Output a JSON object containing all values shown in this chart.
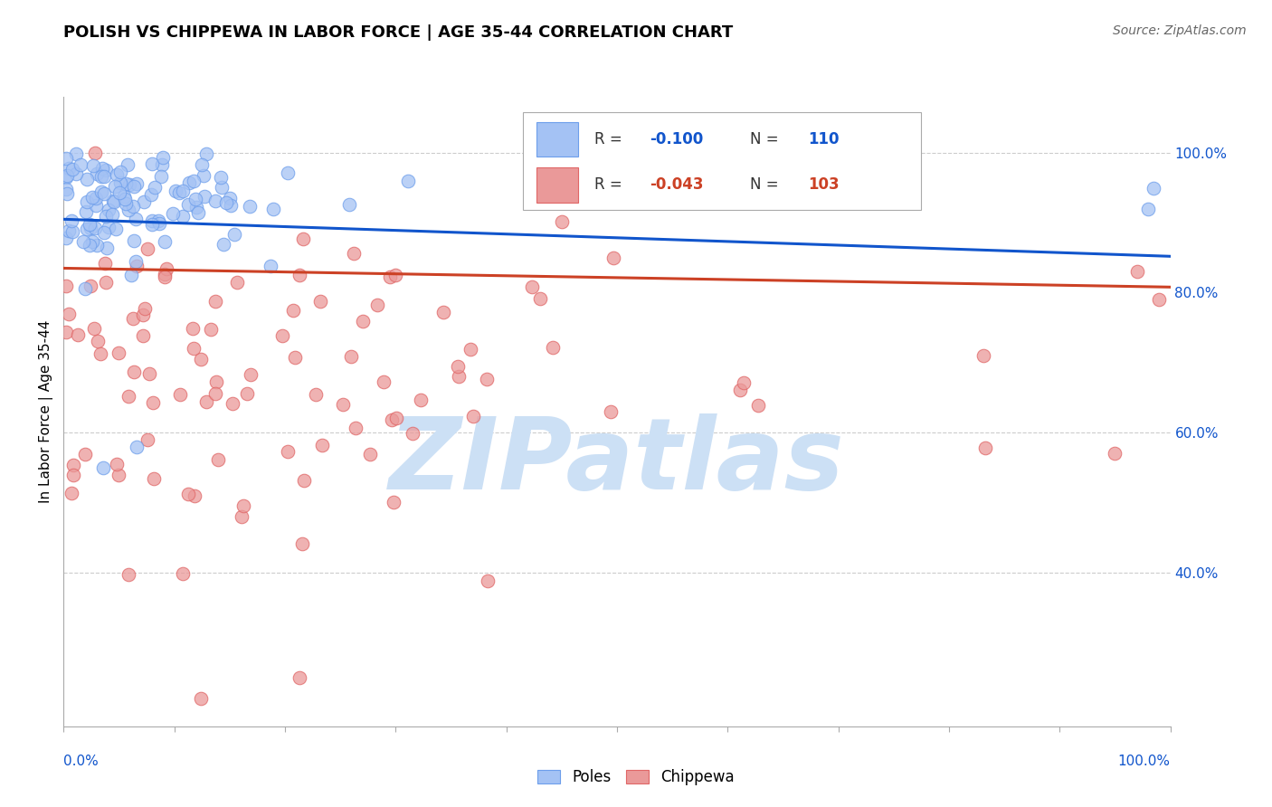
{
  "title": "POLISH VS CHIPPEWA IN LABOR FORCE | AGE 35-44 CORRELATION CHART",
  "source": "Source: ZipAtlas.com",
  "ylabel": "In Labor Force | Age 35-44",
  "xmin": 0.0,
  "xmax": 1.0,
  "ymin": 0.18,
  "ymax": 1.08,
  "poles_R": -0.1,
  "poles_N": 110,
  "chippewa_R": -0.043,
  "chippewa_N": 103,
  "poles_color": "#a4c2f4",
  "chippewa_color": "#ea9999",
  "poles_edge_color": "#6d9eeb",
  "chippewa_edge_color": "#e06666",
  "poles_line_color": "#1155cc",
  "chippewa_line_color": "#cc4125",
  "tick_label_color": "#1155cc",
  "background_color": "#ffffff",
  "watermark_color": "#cce0f5",
  "watermark_text": "ZIPatlas",
  "dashed_line_color": "#cccccc",
  "title_fontsize": 13,
  "axis_label_fontsize": 11,
  "legend_fontsize": 12,
  "source_fontsize": 10,
  "poles_line_start": 0.905,
  "poles_line_end": 0.852,
  "chippewa_line_start": 0.835,
  "chippewa_line_end": 0.808,
  "ytick_positions": [
    0.4,
    0.6,
    0.8,
    1.0
  ],
  "ytick_labels": [
    "40.0%",
    "60.0%",
    "80.0%",
    "100.0%"
  ],
  "dashed_yticks": [
    0.4,
    0.6,
    1.0
  ]
}
